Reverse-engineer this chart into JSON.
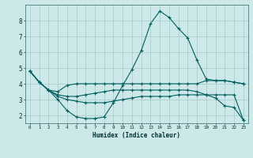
{
  "xlabel": "Humidex (Indice chaleur)",
  "bg_color": "#cce8e8",
  "grid_color": "#aacece",
  "line_color": "#006060",
  "xlim": [
    -0.5,
    23.5
  ],
  "ylim": [
    1.5,
    9.0
  ],
  "yticks": [
    2,
    3,
    4,
    5,
    6,
    7,
    8
  ],
  "xticks": [
    0,
    1,
    2,
    3,
    4,
    5,
    6,
    7,
    8,
    9,
    10,
    11,
    12,
    13,
    14,
    15,
    16,
    17,
    18,
    19,
    20,
    21,
    22,
    23
  ],
  "series": [
    {
      "x": [
        0,
        1,
        2,
        3,
        4,
        5,
        6,
        7,
        8,
        9,
        10,
        11,
        12,
        13,
        14,
        15,
        16,
        17,
        18,
        19,
        20,
        21,
        22,
        23
      ],
      "y": [
        4.8,
        4.1,
        3.6,
        3.0,
        2.3,
        1.9,
        1.8,
        1.8,
        1.9,
        2.8,
        3.9,
        4.9,
        6.1,
        7.8,
        8.6,
        8.2,
        7.5,
        6.9,
        5.5,
        4.3,
        4.2,
        4.2,
        4.1,
        4.0
      ]
    },
    {
      "x": [
        0,
        1,
        2,
        3,
        4,
        5,
        6,
        7,
        8,
        9,
        10,
        11,
        12,
        13,
        14,
        15,
        16,
        17,
        18,
        19,
        20,
        21,
        22,
        23
      ],
      "y": [
        4.8,
        4.1,
        3.6,
        3.5,
        3.9,
        4.0,
        4.0,
        4.0,
        4.0,
        4.0,
        4.0,
        4.0,
        4.0,
        4.0,
        4.0,
        4.0,
        4.0,
        4.0,
        4.0,
        4.2,
        4.2,
        4.2,
        4.1,
        4.0
      ]
    },
    {
      "x": [
        0,
        1,
        2,
        3,
        4,
        5,
        6,
        7,
        8,
        9,
        10,
        11,
        12,
        13,
        14,
        15,
        16,
        17,
        18,
        19,
        20,
        21,
        22,
        23
      ],
      "y": [
        4.8,
        4.1,
        3.6,
        3.3,
        3.2,
        3.2,
        3.3,
        3.4,
        3.5,
        3.6,
        3.6,
        3.6,
        3.6,
        3.6,
        3.6,
        3.6,
        3.6,
        3.6,
        3.5,
        3.3,
        3.1,
        2.6,
        2.5,
        1.7
      ]
    },
    {
      "x": [
        0,
        1,
        2,
        3,
        4,
        5,
        6,
        7,
        8,
        9,
        10,
        11,
        12,
        13,
        14,
        15,
        16,
        17,
        18,
        19,
        20,
        21,
        22,
        23
      ],
      "y": [
        4.8,
        4.1,
        3.6,
        3.2,
        3.0,
        2.9,
        2.8,
        2.8,
        2.8,
        2.9,
        3.0,
        3.1,
        3.2,
        3.2,
        3.2,
        3.2,
        3.3,
        3.3,
        3.3,
        3.3,
        3.3,
        3.3,
        3.3,
        1.7
      ]
    }
  ]
}
